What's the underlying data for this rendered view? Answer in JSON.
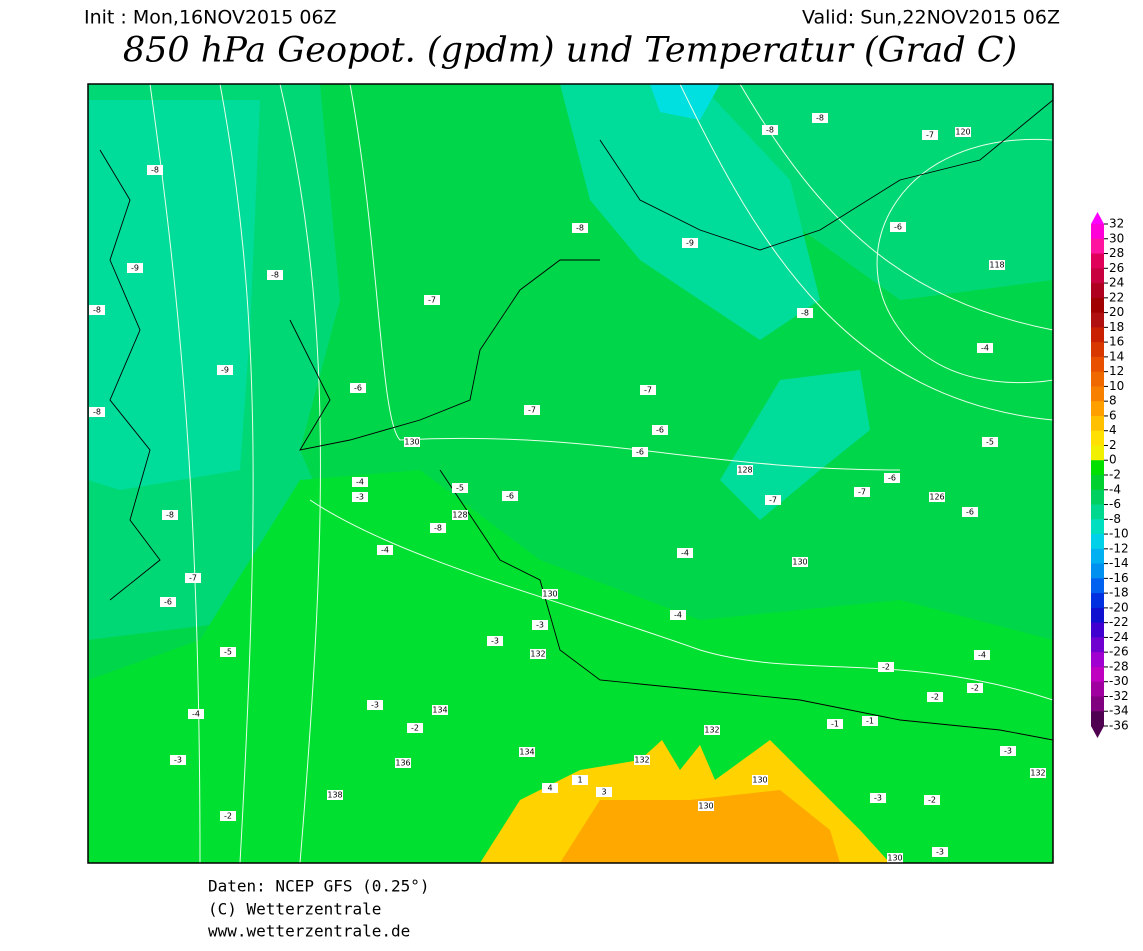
{
  "header": {
    "init": "Init : Mon,16NOV2015 06Z",
    "valid": "Valid: Sun,22NOV2015 06Z",
    "title": "850 hPa Geopot. (gpdm) und Temperatur (Grad C)"
  },
  "map_labels": [
    -8,
    -9,
    -8,
    -8,
    -9,
    -8,
    -7,
    -6,
    130,
    -7,
    -7,
    -6,
    -6,
    -8,
    -9,
    -8,
    -8,
    -8,
    -7,
    120,
    -6,
    118,
    -4,
    -5,
    -4,
    -3,
    -5,
    -6,
    128,
    -8,
    -4,
    -8,
    -7,
    -6,
    -5,
    -4,
    -3,
    -2,
    128,
    -7,
    130,
    -7,
    -6,
    126,
    -6,
    130,
    -3,
    -3,
    132,
    -4,
    -4,
    -3,
    134,
    -2,
    136,
    138,
    134,
    132,
    132,
    130,
    130,
    -2,
    -3,
    132,
    -3,
    -2,
    -2,
    -4,
    -2,
    130,
    -3,
    -1,
    -1,
    4,
    1,
    3
  ],
  "colorbar": {
    "values": [
      32,
      30,
      28,
      26,
      24,
      22,
      20,
      18,
      16,
      14,
      12,
      10,
      8,
      6,
      4,
      2,
      0,
      -2,
      -4,
      -6,
      -8,
      -10,
      -12,
      -14,
      -16,
      -18,
      -20,
      -22,
      -24,
      -26,
      -28,
      -30,
      -32,
      -34,
      -36
    ],
    "colors": [
      "#ff00ff",
      "#ff00d8",
      "#ff14a0",
      "#e0005a",
      "#c80040",
      "#b00020",
      "#a00000",
      "#b01010",
      "#c82000",
      "#d83800",
      "#e85000",
      "#f06800",
      "#f88000",
      "#ffa000",
      "#ffc000",
      "#ffe000",
      "#f0f000",
      "#00e000",
      "#00d030",
      "#00d060",
      "#00d890",
      "#00e0c0",
      "#00d0e8",
      "#00b0f0",
      "#0090f0",
      "#0060f0",
      "#0030e0",
      "#1010d0",
      "#4000d0",
      "#7000d0",
      "#a000d0",
      "#c000c0",
      "#a000a0",
      "#800080",
      "#500050"
    ]
  },
  "footer": {
    "source": "Daten: NCEP GFS (0.25°)",
    "copyright": "(C) Wetterzentrale",
    "url": "www.wetterzentrale.de"
  }
}
